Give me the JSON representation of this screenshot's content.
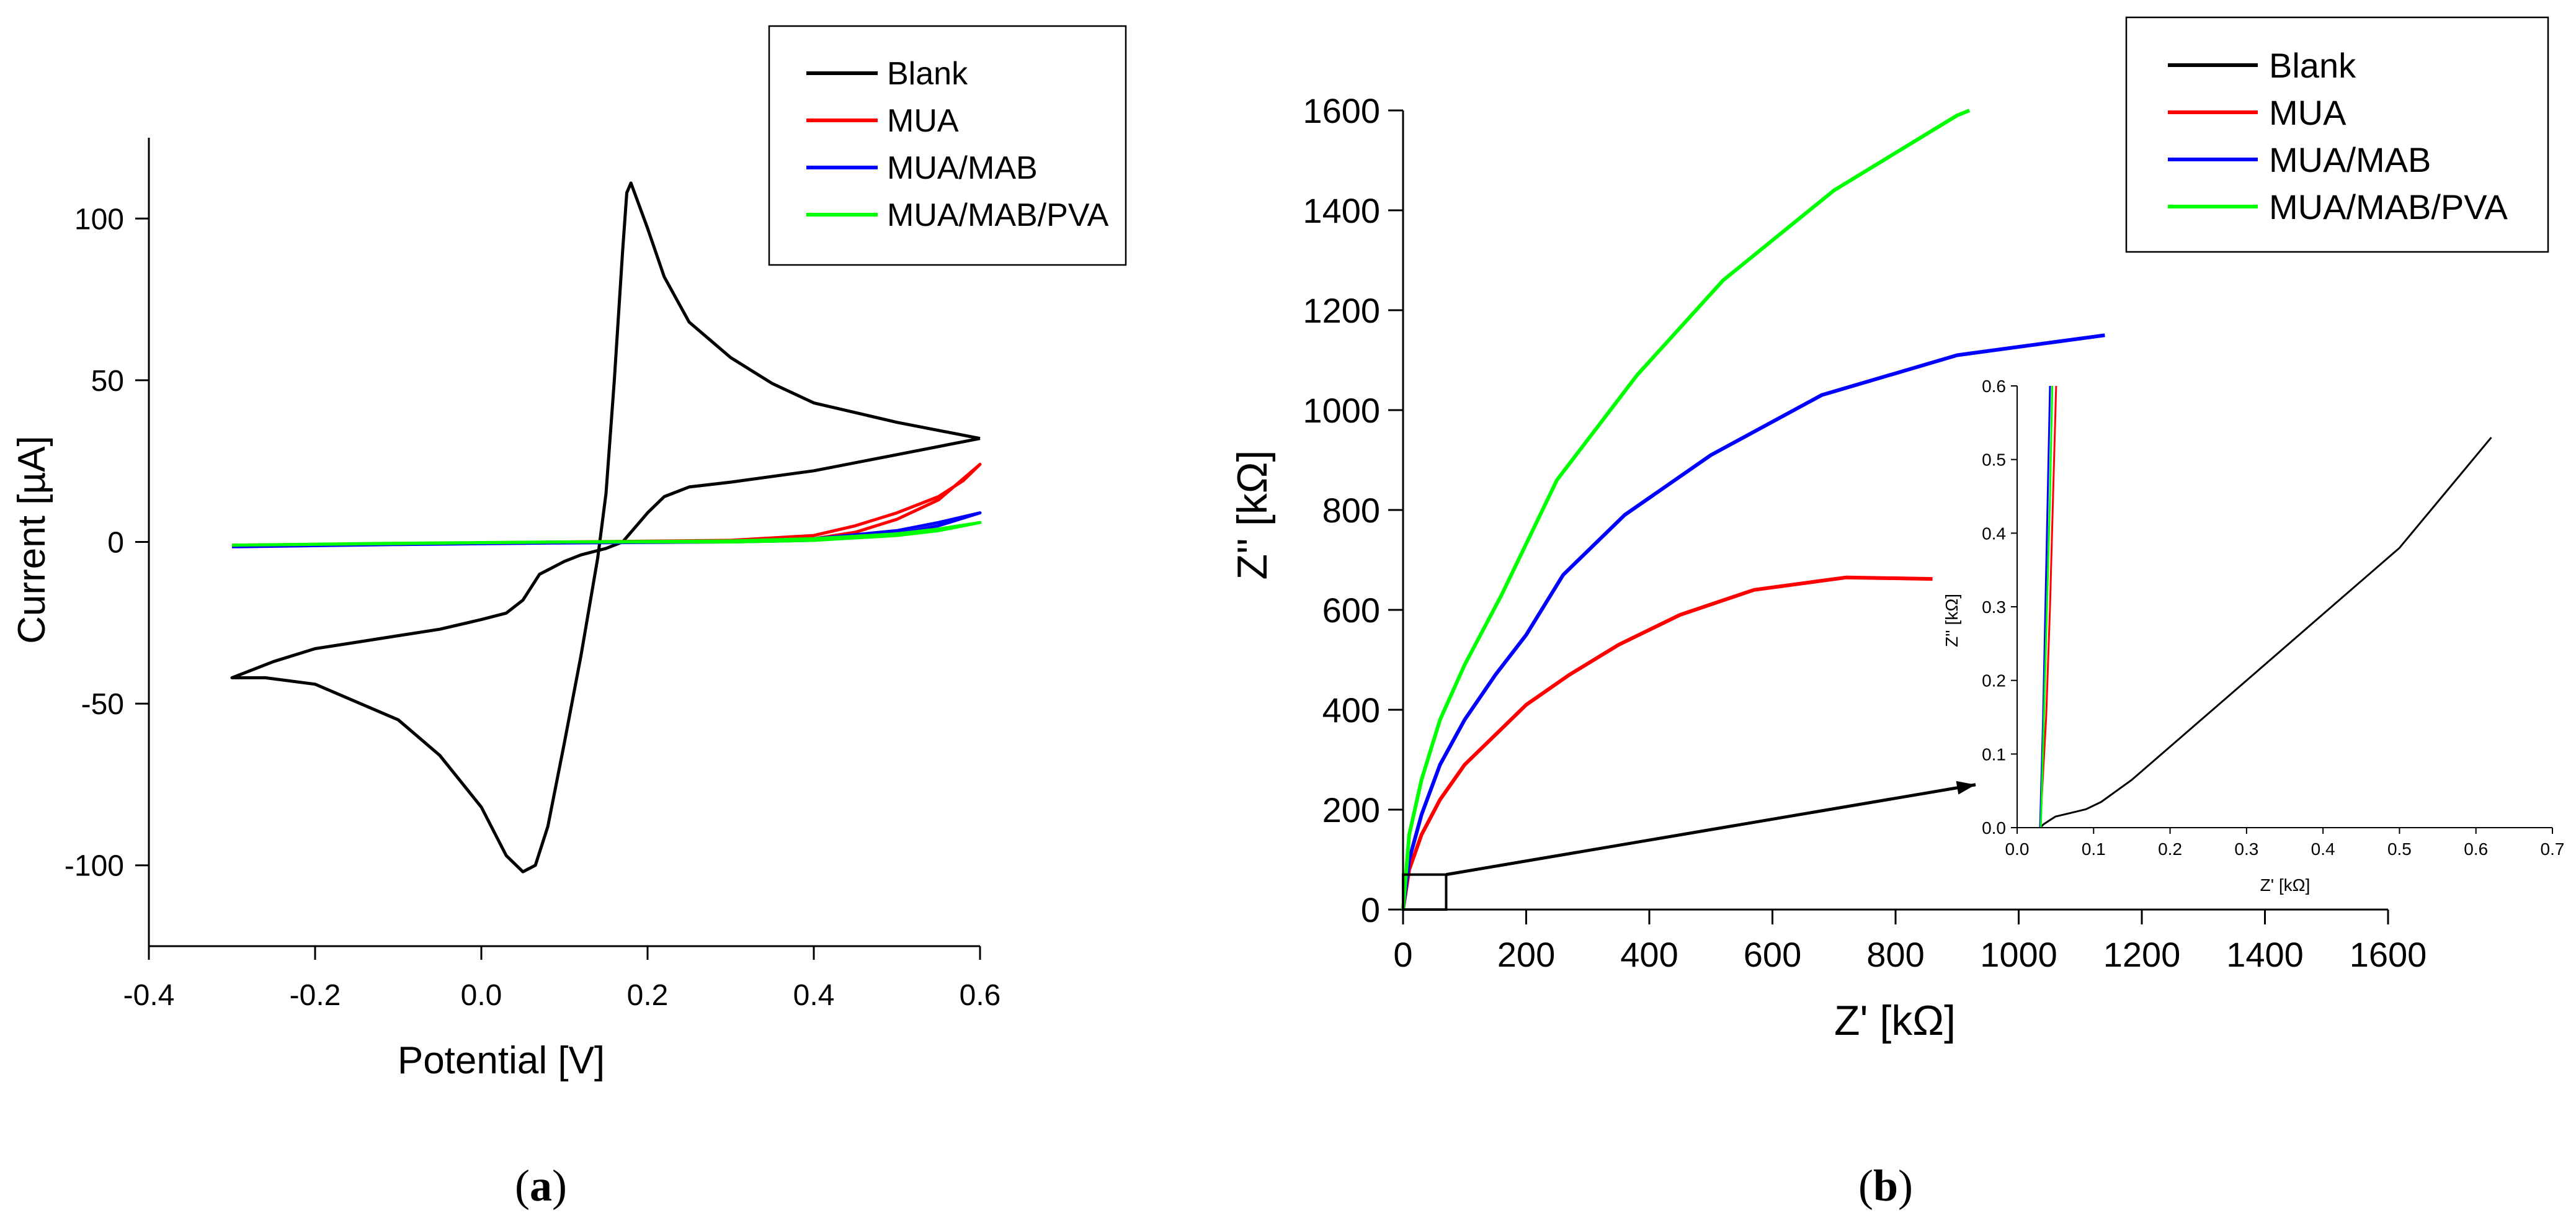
{
  "chart_data": [
    {
      "type": "line",
      "panel": "a",
      "caption": {
        "open": "(",
        "letter": "a",
        "close": ")"
      },
      "xlabel": "Potential [V]",
      "ylabel": "Current [µA]",
      "xlim": [
        -0.4,
        0.6
      ],
      "ylim": [
        -125,
        125
      ],
      "xticks": [
        -0.4,
        -0.2,
        0.0,
        0.2,
        0.4,
        0.6
      ],
      "xtick_labels": [
        "-0.4",
        "-0.2",
        "0.0",
        "0.2",
        "0.4",
        "0.6"
      ],
      "yticks": [
        -100,
        -50,
        0,
        50,
        100
      ],
      "ytick_labels": [
        "-100",
        "-50",
        "0",
        "50",
        "100"
      ],
      "legend_position": "top-right",
      "series": [
        {
          "name": "Blank",
          "color": "#000000",
          "points": [
            [
              0.6,
              32
            ],
            [
              0.5,
              27
            ],
            [
              0.4,
              22
            ],
            [
              0.3,
              18.5
            ],
            [
              0.25,
              17
            ],
            [
              0.22,
              14
            ],
            [
              0.2,
              9
            ],
            [
              0.18,
              3
            ],
            [
              0.17,
              0
            ],
            [
              0.15,
              -2
            ],
            [
              0.12,
              -4
            ],
            [
              0.1,
              -6
            ],
            [
              0.07,
              -10
            ],
            [
              0.05,
              -18
            ],
            [
              0.03,
              -22
            ],
            [
              0.0,
              -24
            ],
            [
              -0.05,
              -27
            ],
            [
              -0.1,
              -29
            ],
            [
              -0.15,
              -31
            ],
            [
              -0.2,
              -33
            ],
            [
              -0.25,
              -37
            ],
            [
              -0.3,
              -42
            ],
            [
              -0.26,
              -42
            ],
            [
              -0.2,
              -44
            ],
            [
              -0.1,
              -55
            ],
            [
              -0.05,
              -66
            ],
            [
              0.0,
              -82
            ],
            [
              0.03,
              -97
            ],
            [
              0.05,
              -102
            ],
            [
              0.065,
              -100
            ],
            [
              0.08,
              -88
            ],
            [
              0.1,
              -62
            ],
            [
              0.12,
              -35
            ],
            [
              0.14,
              -5
            ],
            [
              0.15,
              15
            ],
            [
              0.16,
              50
            ],
            [
              0.17,
              90
            ],
            [
              0.175,
              108
            ],
            [
              0.18,
              111
            ],
            [
              0.2,
              97
            ],
            [
              0.22,
              82
            ],
            [
              0.25,
              68
            ],
            [
              0.3,
              57
            ],
            [
              0.35,
              49
            ],
            [
              0.4,
              43
            ],
            [
              0.5,
              37
            ],
            [
              0.6,
              32
            ]
          ]
        },
        {
          "name": "MUA",
          "color": "#ff0000",
          "points": [
            [
              -0.3,
              -1
            ],
            [
              -0.1,
              -0.5
            ],
            [
              0.1,
              0
            ],
            [
              0.3,
              0
            ],
            [
              0.4,
              1
            ],
            [
              0.45,
              3
            ],
            [
              0.5,
              7
            ],
            [
              0.55,
              13
            ],
            [
              0.6,
              24
            ],
            [
              0.58,
              19
            ],
            [
              0.55,
              14
            ],
            [
              0.5,
              9
            ],
            [
              0.45,
              5
            ],
            [
              0.4,
              2
            ],
            [
              0.3,
              0.5
            ],
            [
              0.1,
              0
            ],
            [
              -0.1,
              -0.5
            ],
            [
              -0.3,
              -1
            ]
          ]
        },
        {
          "name": "MUA/MAB",
          "color": "#0000ff",
          "points": [
            [
              -0.3,
              -1.5
            ],
            [
              -0.1,
              -0.7
            ],
            [
              0.1,
              0
            ],
            [
              0.3,
              0
            ],
            [
              0.4,
              0.5
            ],
            [
              0.5,
              2.5
            ],
            [
              0.55,
              5
            ],
            [
              0.6,
              9
            ],
            [
              0.55,
              6
            ],
            [
              0.5,
              3.5
            ],
            [
              0.4,
              1
            ],
            [
              0.3,
              0
            ],
            [
              0.1,
              -0.3
            ],
            [
              -0.1,
              -0.8
            ],
            [
              -0.3,
              -1.5
            ]
          ]
        },
        {
          "name": "MUA/MAB/PVA",
          "color": "#00ff00",
          "points": [
            [
              -0.3,
              -1
            ],
            [
              -0.1,
              -0.5
            ],
            [
              0.1,
              0
            ],
            [
              0.3,
              0
            ],
            [
              0.4,
              0.5
            ],
            [
              0.5,
              2
            ],
            [
              0.55,
              3.5
            ],
            [
              0.6,
              6
            ],
            [
              0.55,
              4
            ],
            [
              0.5,
              2.5
            ],
            [
              0.4,
              1
            ],
            [
              0.3,
              0.3
            ],
            [
              0.1,
              0
            ],
            [
              -0.1,
              -0.4
            ],
            [
              -0.3,
              -1
            ]
          ]
        }
      ]
    },
    {
      "type": "line",
      "panel": "b",
      "caption": {
        "open": "(",
        "letter": "b",
        "close": ")"
      },
      "xlabel": "Z' [kΩ]",
      "ylabel": "Z'' [kΩ]",
      "xlim": [
        0,
        1600
      ],
      "ylim": [
        0,
        1600
      ],
      "xticks": [
        0,
        200,
        400,
        600,
        800,
        1000,
        1200,
        1400,
        1600
      ],
      "xtick_labels": [
        "0",
        "200",
        "400",
        "600",
        "800",
        "1000",
        "1200",
        "1400",
        "1600"
      ],
      "yticks": [
        0,
        200,
        400,
        600,
        800,
        1000,
        1200,
        1400,
        1600
      ],
      "ytick_labels": [
        "0",
        "200",
        "400",
        "600",
        "800",
        "1000",
        "1200",
        "1400",
        "1600"
      ],
      "legend_position": "top-right",
      "series": [
        {
          "name": "Blank",
          "color": "#000000",
          "points": [
            [
              0,
              0
            ],
            [
              0.6,
              0.5
            ]
          ]
        },
        {
          "name": "MUA",
          "color": "#ff0000",
          "points": [
            [
              0,
              0
            ],
            [
              10,
              80
            ],
            [
              30,
              150
            ],
            [
              60,
              220
            ],
            [
              100,
              290
            ],
            [
              150,
              350
            ],
            [
              200,
              410
            ],
            [
              270,
              470
            ],
            [
              350,
              530
            ],
            [
              450,
              590
            ],
            [
              570,
              640
            ],
            [
              720,
              665
            ],
            [
              860,
              662
            ]
          ]
        },
        {
          "name": "MUA/MAB",
          "color": "#0000ff",
          "points": [
            [
              0,
              0
            ],
            [
              10,
              100
            ],
            [
              30,
              190
            ],
            [
              60,
              290
            ],
            [
              100,
              380
            ],
            [
              150,
              470
            ],
            [
              200,
              550
            ],
            [
              260,
              670
            ],
            [
              360,
              790
            ],
            [
              500,
              910
            ],
            [
              680,
              1030
            ],
            [
              900,
              1110
            ],
            [
              1140,
              1150
            ]
          ]
        },
        {
          "name": "MUA/MAB/PVA",
          "color": "#00ff00",
          "points": [
            [
              0,
              0
            ],
            [
              10,
              150
            ],
            [
              30,
              260
            ],
            [
              60,
              380
            ],
            [
              100,
              490
            ],
            [
              160,
              630
            ],
            [
              250,
              860
            ],
            [
              380,
              1070
            ],
            [
              520,
              1260
            ],
            [
              700,
              1440
            ],
            [
              900,
              1590
            ],
            [
              920,
              1600
            ]
          ]
        }
      ],
      "zoom_box": {
        "x": [
          0,
          70
        ],
        "y": [
          0,
          70
        ]
      },
      "arrow": {
        "from": [
          70,
          70
        ],
        "to": [
          930,
          250
        ]
      },
      "inset": {
        "xlabel": "Z' [kΩ]",
        "ylabel": "Z'' [kΩ]",
        "xlim": [
          0,
          0.7
        ],
        "ylim": [
          0,
          0.6
        ],
        "xticks": [
          0,
          0.1,
          0.2,
          0.3,
          0.4,
          0.5,
          0.6,
          0.7
        ],
        "xtick_labels": [
          "0.0",
          "0.1",
          "0.2",
          "0.3",
          "0.4",
          "0.5",
          "0.6",
          "0.7"
        ],
        "yticks": [
          0,
          0.1,
          0.2,
          0.3,
          0.4,
          0.5,
          0.6
        ],
        "ytick_labels": [
          "0.0",
          "0.1",
          "0.2",
          "0.3",
          "0.4",
          "0.5",
          "0.6"
        ],
        "series": [
          {
            "name": "Blank",
            "color": "#000000",
            "points": [
              [
                0.03,
                0
              ],
              [
                0.035,
                0.005
              ],
              [
                0.05,
                0.015
              ],
              [
                0.07,
                0.02
              ],
              [
                0.09,
                0.025
              ],
              [
                0.11,
                0.035
              ],
              [
                0.15,
                0.065
              ],
              [
                0.2,
                0.11
              ],
              [
                0.3,
                0.2
              ],
              [
                0.4,
                0.29
              ],
              [
                0.5,
                0.38
              ],
              [
                0.62,
                0.53
              ]
            ]
          },
          {
            "name": "MUA",
            "color": "#ff0000",
            "points": [
              [
                0.03,
                0
              ],
              [
                0.038,
                0.15
              ],
              [
                0.043,
                0.3
              ],
              [
                0.047,
                0.45
              ],
              [
                0.051,
                0.6
              ]
            ]
          },
          {
            "name": "MUA/MAB",
            "color": "#0000ff",
            "points": [
              [
                0.03,
                0
              ],
              [
                0.034,
                0.15
              ],
              [
                0.037,
                0.3
              ],
              [
                0.04,
                0.45
              ],
              [
                0.043,
                0.6
              ]
            ]
          },
          {
            "name": "MUA/MAB/PVA",
            "color": "#00ff00",
            "points": [
              [
                0.031,
                0
              ],
              [
                0.035,
                0.15
              ],
              [
                0.039,
                0.3
              ],
              [
                0.043,
                0.45
              ],
              [
                0.046,
                0.6
              ]
            ]
          }
        ]
      }
    }
  ]
}
